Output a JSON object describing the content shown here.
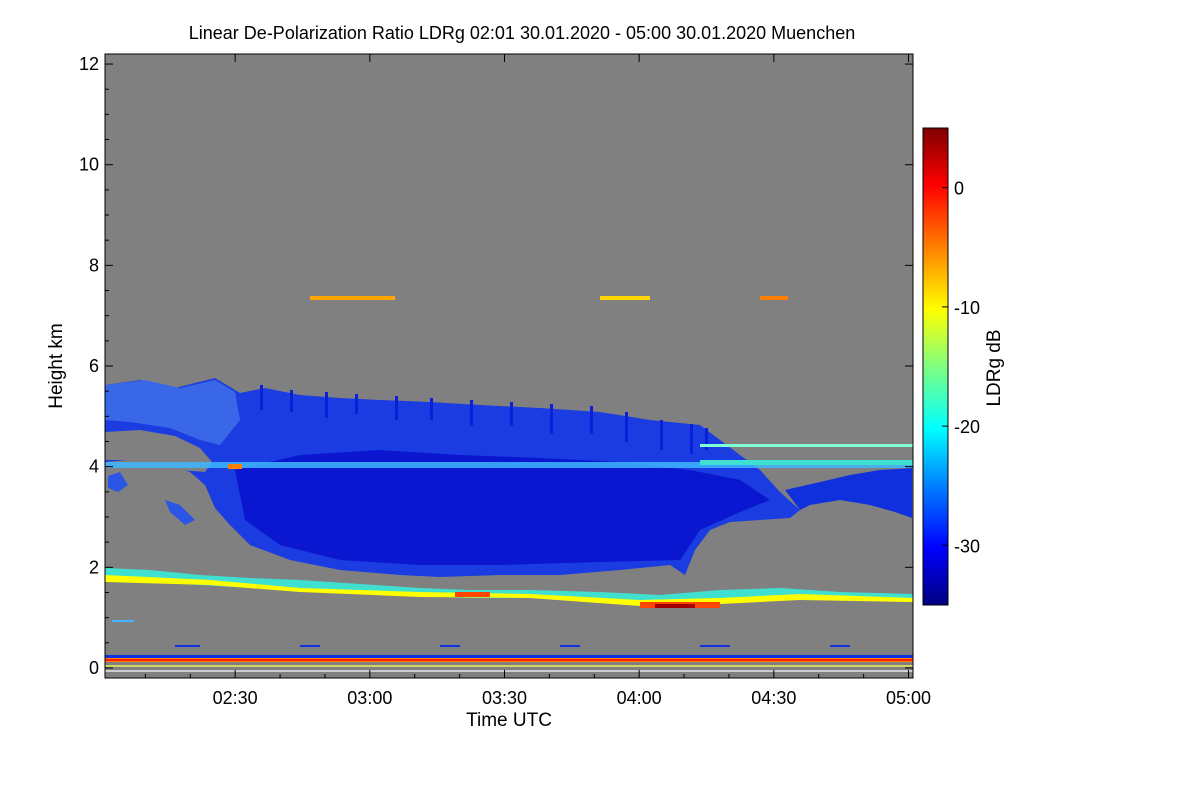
{
  "chart_data": {
    "type": "heatmap",
    "title": "Linear De-Polarization Ratio LDRg   02:01 30.01.2020 - 05:00 30.01.2020 Muenchen",
    "xlabel": "Time UTC",
    "ylabel": "Height km",
    "colorbar_label": "LDRg dB",
    "x_range_hours": [
      2.0167,
      5.0167
    ],
    "y_range_km": [
      -0.2,
      12.2
    ],
    "x_ticks": [
      {
        "value": 2.5,
        "label": "02:30"
      },
      {
        "value": 3.0,
        "label": "03:00"
      },
      {
        "value": 3.5,
        "label": "03:30"
      },
      {
        "value": 4.0,
        "label": "04:00"
      },
      {
        "value": 4.5,
        "label": "04:30"
      },
      {
        "value": 5.0,
        "label": "05:00"
      }
    ],
    "y_ticks": [
      {
        "value": 0,
        "label": "0"
      },
      {
        "value": 2,
        "label": "2"
      },
      {
        "value": 4,
        "label": "4"
      },
      {
        "value": 6,
        "label": "6"
      },
      {
        "value": 8,
        "label": "8"
      },
      {
        "value": 10,
        "label": "10"
      },
      {
        "value": 12,
        "label": "12"
      }
    ],
    "colorbar_range_db": [
      -35,
      5
    ],
    "colorbar_ticks": [
      {
        "value": 0,
        "label": "0"
      },
      {
        "value": -10,
        "label": "-10"
      },
      {
        "value": -20,
        "label": "-20"
      },
      {
        "value": -30,
        "label": "-30"
      }
    ],
    "background_color": "#808080",
    "colormap": [
      "#00007f",
      "#0000ff",
      "#0080ff",
      "#00ffff",
      "#80ff80",
      "#ffff00",
      "#ff8000",
      "#ff0000",
      "#7f0000"
    ],
    "features": [
      {
        "kind": "ice-cloud",
        "x_start": 2.02,
        "x_end": 4.3,
        "y_bottom": 1.9,
        "y_top": 5.6,
        "ldr_db": -32
      },
      {
        "kind": "virga-tail",
        "x_start": 4.3,
        "x_end": 5.0,
        "y_bottom": 3.0,
        "y_top": 4.1,
        "ldr_db": -31
      },
      {
        "kind": "mixed-layer",
        "x_start": 2.02,
        "x_end": 5.0,
        "y_bottom": 1.4,
        "y_top": 2.1,
        "ldr_db": -12
      },
      {
        "kind": "thin-layer",
        "x_start": 2.75,
        "x_end": 4.55,
        "y_bottom": 7.25,
        "y_top": 7.35,
        "ldr_db": -6
      },
      {
        "kind": "surface-return",
        "x_start": 2.02,
        "x_end": 5.0,
        "y_bottom": 0.2,
        "y_top": 0.35,
        "ldr_db": -2
      }
    ]
  }
}
